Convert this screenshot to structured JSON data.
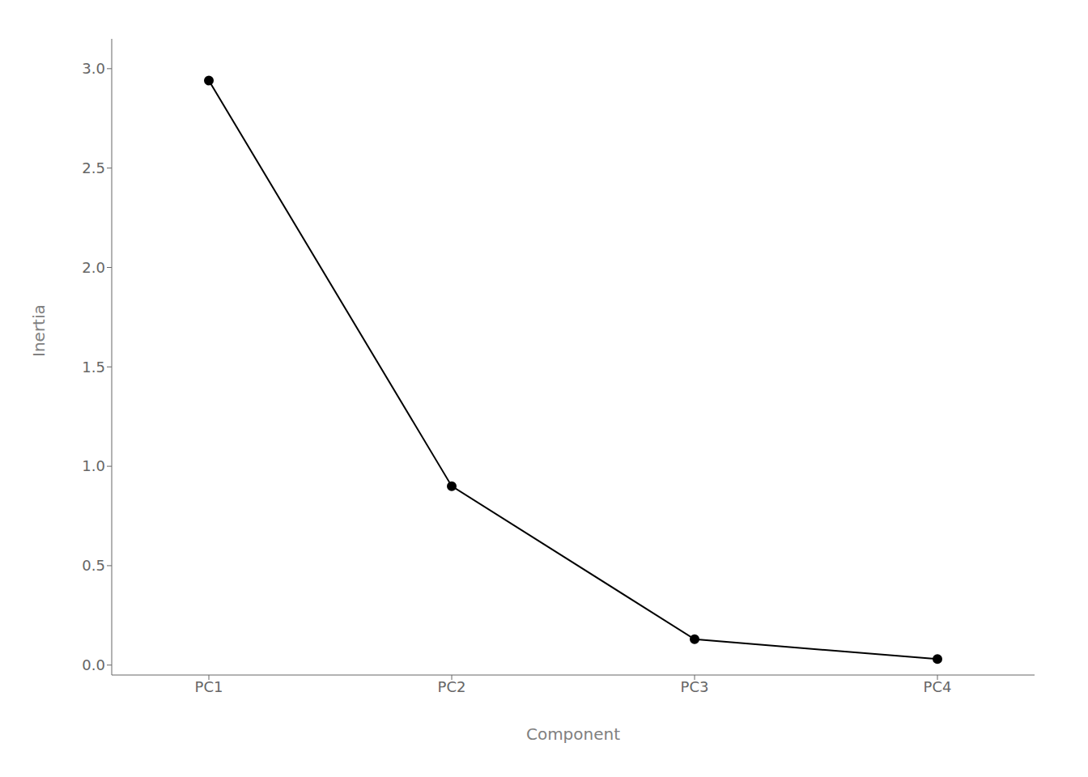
{
  "chart_data": {
    "type": "line",
    "categories": [
      "PC1",
      "PC2",
      "PC3",
      "PC4"
    ],
    "values": [
      2.94,
      0.9,
      0.13,
      0.03
    ],
    "xlabel": "Component",
    "ylabel": "Inertia",
    "ylim": [
      -0.05,
      3.15
    ],
    "yticks": [
      {
        "value": 0.0,
        "label": "0.0"
      },
      {
        "value": 0.5,
        "label": "0.5"
      },
      {
        "value": 1.0,
        "label": "1.0"
      },
      {
        "value": 1.5,
        "label": "1.5"
      },
      {
        "value": 2.0,
        "label": "2.0"
      },
      {
        "value": 2.5,
        "label": "2.5"
      },
      {
        "value": 3.0,
        "label": "3.0"
      }
    ],
    "color": "#000000",
    "marker": "circle",
    "grid": false
  }
}
